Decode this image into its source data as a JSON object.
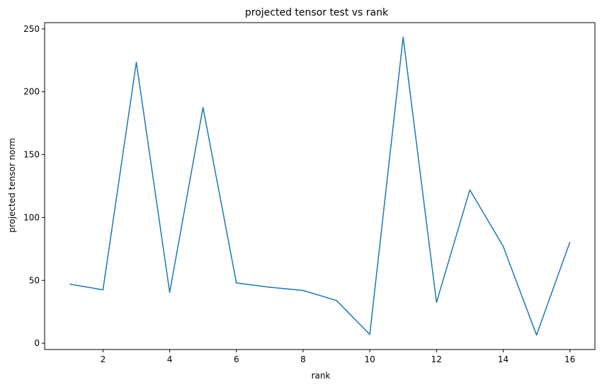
{
  "chart_data": {
    "type": "line",
    "title": "projected tensor test vs rank",
    "xlabel": "rank",
    "ylabel": "projected tensor norm",
    "xlim": [
      0.25,
      16.75
    ],
    "ylim": [
      -5,
      255
    ],
    "xticks": [
      2,
      4,
      6,
      8,
      10,
      12,
      14,
      16
    ],
    "yticks": [
      0,
      50,
      100,
      150,
      200,
      250
    ],
    "grid": false,
    "line_color": "#1f77b4",
    "series": [
      {
        "x": [
          1,
          2,
          3,
          4,
          5,
          6,
          7,
          8,
          9,
          10,
          11,
          12,
          13,
          14,
          15,
          16
        ],
        "y": [
          47,
          42.5,
          223.5,
          40.5,
          187.5,
          48,
          44.5,
          42,
          34,
          7,
          243.5,
          32.5,
          122,
          77,
          6.5,
          80.5
        ]
      }
    ]
  }
}
